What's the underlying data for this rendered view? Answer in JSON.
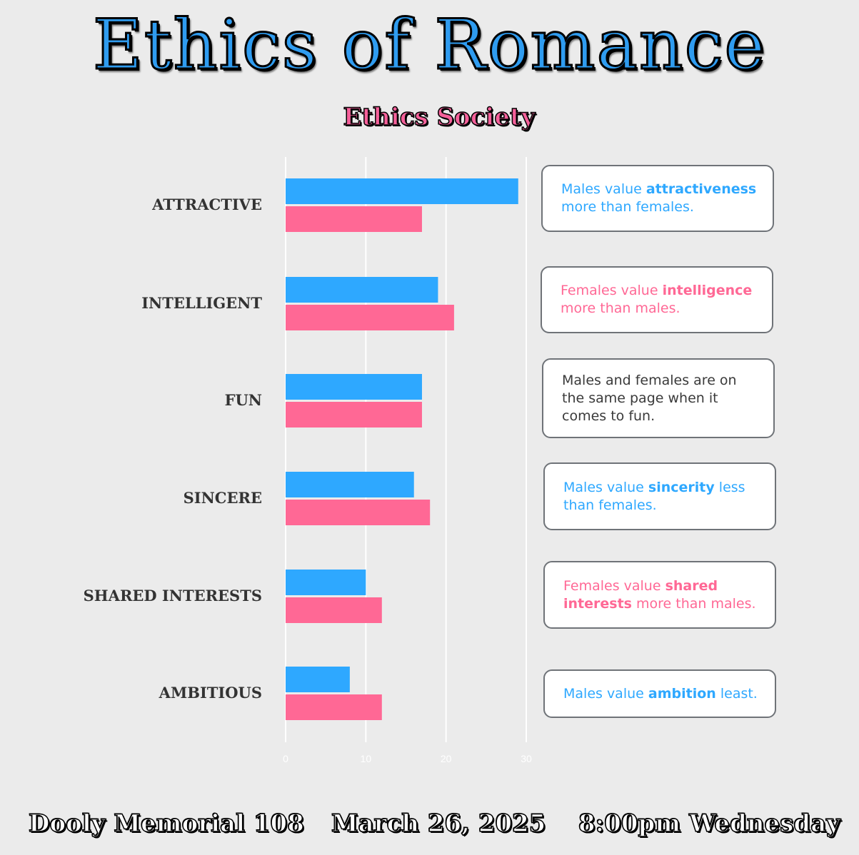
{
  "poster": {
    "title": "Ethics of Romance",
    "organizer": "Ethics Society",
    "location": "Dooly Memorial 108",
    "date": "March 26, 2025",
    "time": "8:00pm Wednesday"
  },
  "colors": {
    "background": "#ebebeb",
    "males": "#2ea8ff",
    "females": "#ff6895",
    "neutral_text": "#333333"
  },
  "chart_data": {
    "type": "bar",
    "orientation": "horizontal",
    "categories": [
      "ATTRACTIVE",
      "INTELLIGENT",
      "FUN",
      "SINCERE",
      "SHARED INTERESTS",
      "AMBITIOUS"
    ],
    "series": [
      {
        "color": "#2ea8ff",
        "values": [
          29,
          19,
          17,
          16,
          10,
          8
        ]
      },
      {
        "color": "#ff6895",
        "values": [
          17,
          21,
          17,
          18,
          12,
          12
        ]
      }
    ],
    "xlim": [
      0,
      30
    ],
    "xticks": [
      "0",
      "10",
      "20",
      "30"
    ],
    "grid": true
  },
  "callouts": [
    {
      "color": "#2ea8ff",
      "lines": [
        [
          {
            "t": "Males value "
          },
          {
            "t": "attractiveness",
            "b": true
          }
        ],
        [
          {
            "t": "more than females."
          }
        ]
      ]
    },
    {
      "color": "#ff6895",
      "lines": [
        [
          {
            "t": "Females value "
          },
          {
            "t": "intelligence",
            "b": true
          }
        ],
        [
          {
            "t": "more than males."
          }
        ]
      ]
    },
    {
      "color": "#3a3a3a",
      "lines": [
        [
          {
            "t": "Males and females are on"
          }
        ],
        [
          {
            "t": "the same page when it"
          }
        ],
        [
          {
            "t": "comes to fun."
          }
        ]
      ]
    },
    {
      "color": "#2ea8ff",
      "lines": [
        [
          {
            "t": "Males value "
          },
          {
            "t": "sincerity",
            "b": true
          },
          {
            "t": " less"
          }
        ],
        [
          {
            "t": "than females."
          }
        ]
      ]
    },
    {
      "color": "#ff6895",
      "lines": [
        [
          {
            "t": "Females value "
          },
          {
            "t": "shared",
            "b": true
          }
        ],
        [
          {
            "t": "interests",
            "b": true
          },
          {
            "t": " more than males."
          }
        ]
      ]
    },
    {
      "color": "#2ea8ff",
      "lines": [
        [
          {
            "t": "Males value "
          },
          {
            "t": "ambition",
            "b": true
          },
          {
            "t": " least."
          }
        ]
      ]
    }
  ]
}
